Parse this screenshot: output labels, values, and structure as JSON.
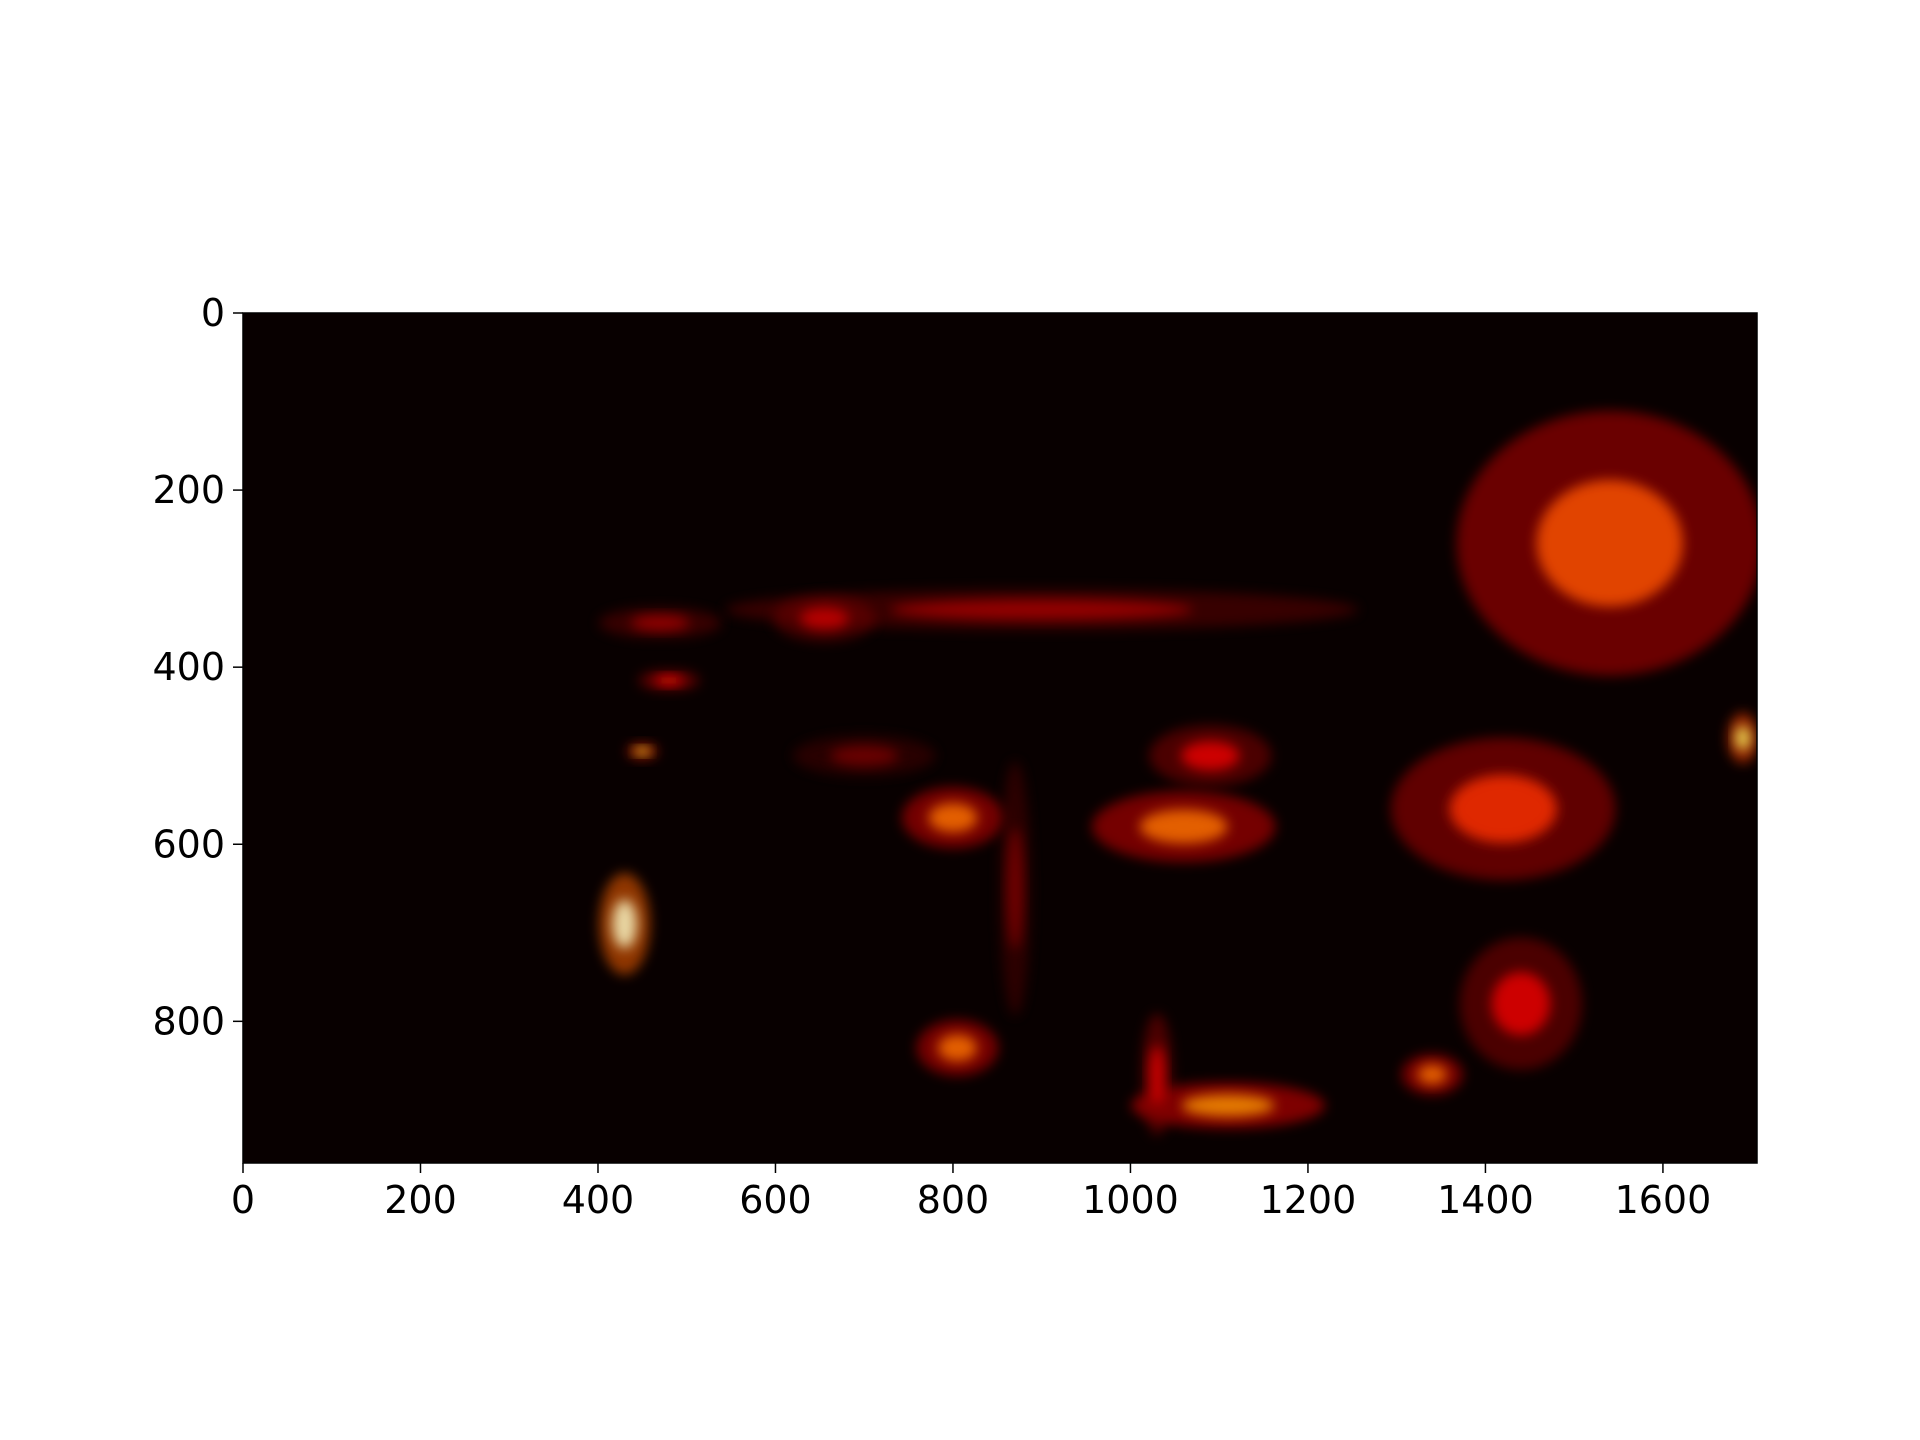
{
  "chart_data": {
    "type": "heatmap",
    "title": "",
    "xlabel": "",
    "ylabel": "",
    "xlim": [
      0,
      1706
    ],
    "ylim": [
      960,
      0
    ],
    "y_axis_inverted": true,
    "colormap": "hot",
    "colorbar": false,
    "grid": false,
    "background_color": "#080000",
    "x_ticks": [
      0,
      200,
      400,
      600,
      800,
      1000,
      1200,
      1400,
      1600
    ],
    "y_ticks": [
      0,
      200,
      400,
      600,
      800
    ],
    "x_tick_labels": [
      "0",
      "200",
      "400",
      "600",
      "800",
      "1000",
      "1200",
      "1400",
      "1600"
    ],
    "y_tick_labels": [
      "0",
      "200",
      "400",
      "600",
      "800"
    ],
    "hotspots": [
      {
        "x": 430,
        "y": 690,
        "w": 50,
        "h": 100,
        "intensity": 0.95
      },
      {
        "x": 450,
        "y": 495,
        "w": 30,
        "h": 15,
        "intensity": 0.8
      },
      {
        "x": 700,
        "y": 500,
        "w": 140,
        "h": 40,
        "intensity": 0.18
      },
      {
        "x": 800,
        "y": 570,
        "w": 100,
        "h": 60,
        "intensity": 0.55
      },
      {
        "x": 1060,
        "y": 580,
        "w": 180,
        "h": 70,
        "intensity": 0.55
      },
      {
        "x": 1090,
        "y": 500,
        "w": 120,
        "h": 60,
        "intensity": 0.35
      },
      {
        "x": 805,
        "y": 830,
        "w": 80,
        "h": 55,
        "intensity": 0.55
      },
      {
        "x": 1110,
        "y": 895,
        "w": 190,
        "h": 45,
        "intensity": 0.6
      },
      {
        "x": 1540,
        "y": 260,
        "w": 300,
        "h": 260,
        "intensity": 0.5
      },
      {
        "x": 1420,
        "y": 560,
        "w": 220,
        "h": 140,
        "intensity": 0.45
      },
      {
        "x": 1690,
        "y": 480,
        "w": 30,
        "h": 50,
        "intensity": 0.85
      },
      {
        "x": 1440,
        "y": 780,
        "w": 120,
        "h": 130,
        "intensity": 0.35
      },
      {
        "x": 1340,
        "y": 860,
        "w": 60,
        "h": 40,
        "intensity": 0.55
      },
      {
        "x": 900,
        "y": 335,
        "w": 620,
        "h": 40,
        "intensity": 0.25
      },
      {
        "x": 470,
        "y": 350,
        "w": 120,
        "h": 30,
        "intensity": 0.25
      },
      {
        "x": 655,
        "y": 345,
        "w": 100,
        "h": 45,
        "intensity": 0.3
      },
      {
        "x": 480,
        "y": 415,
        "w": 60,
        "h": 20,
        "intensity": 0.4
      },
      {
        "x": 870,
        "y": 650,
        "w": 30,
        "h": 250,
        "intensity": 0.2
      },
      {
        "x": 1030,
        "y": 860,
        "w": 30,
        "h": 120,
        "intensity": 0.35
      }
    ]
  }
}
